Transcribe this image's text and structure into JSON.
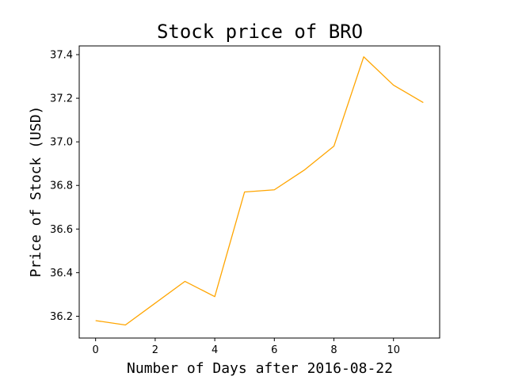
{
  "chart_data": {
    "type": "line",
    "title": "Stock price of BRO",
    "xlabel": "Number of Days after 2016-08-22",
    "ylabel": "Price of Stock (USD)",
    "x": [
      0,
      1,
      2,
      3,
      4,
      5,
      6,
      7,
      8,
      9,
      10,
      11
    ],
    "series": [
      {
        "values": [
          36.18,
          36.16,
          36.26,
          36.36,
          36.29,
          36.77,
          36.78,
          36.87,
          36.98,
          37.39,
          37.26,
          37.18
        ],
        "color": "#ffa500"
      }
    ],
    "xlim": [
      -0.55,
      11.55
    ],
    "ylim": [
      36.1,
      37.44
    ],
    "xticks": [
      0,
      2,
      4,
      6,
      8,
      10
    ],
    "yticks": [
      36.2,
      36.4,
      36.6,
      36.8,
      37.0,
      37.2,
      37.4
    ],
    "xtick_labels": [
      "0",
      "2",
      "4",
      "6",
      "8",
      "10"
    ],
    "ytick_labels": [
      "36.2",
      "36.4",
      "36.6",
      "36.8",
      "37.0",
      "37.2",
      "37.4"
    ],
    "grid": false,
    "legend": "none"
  }
}
